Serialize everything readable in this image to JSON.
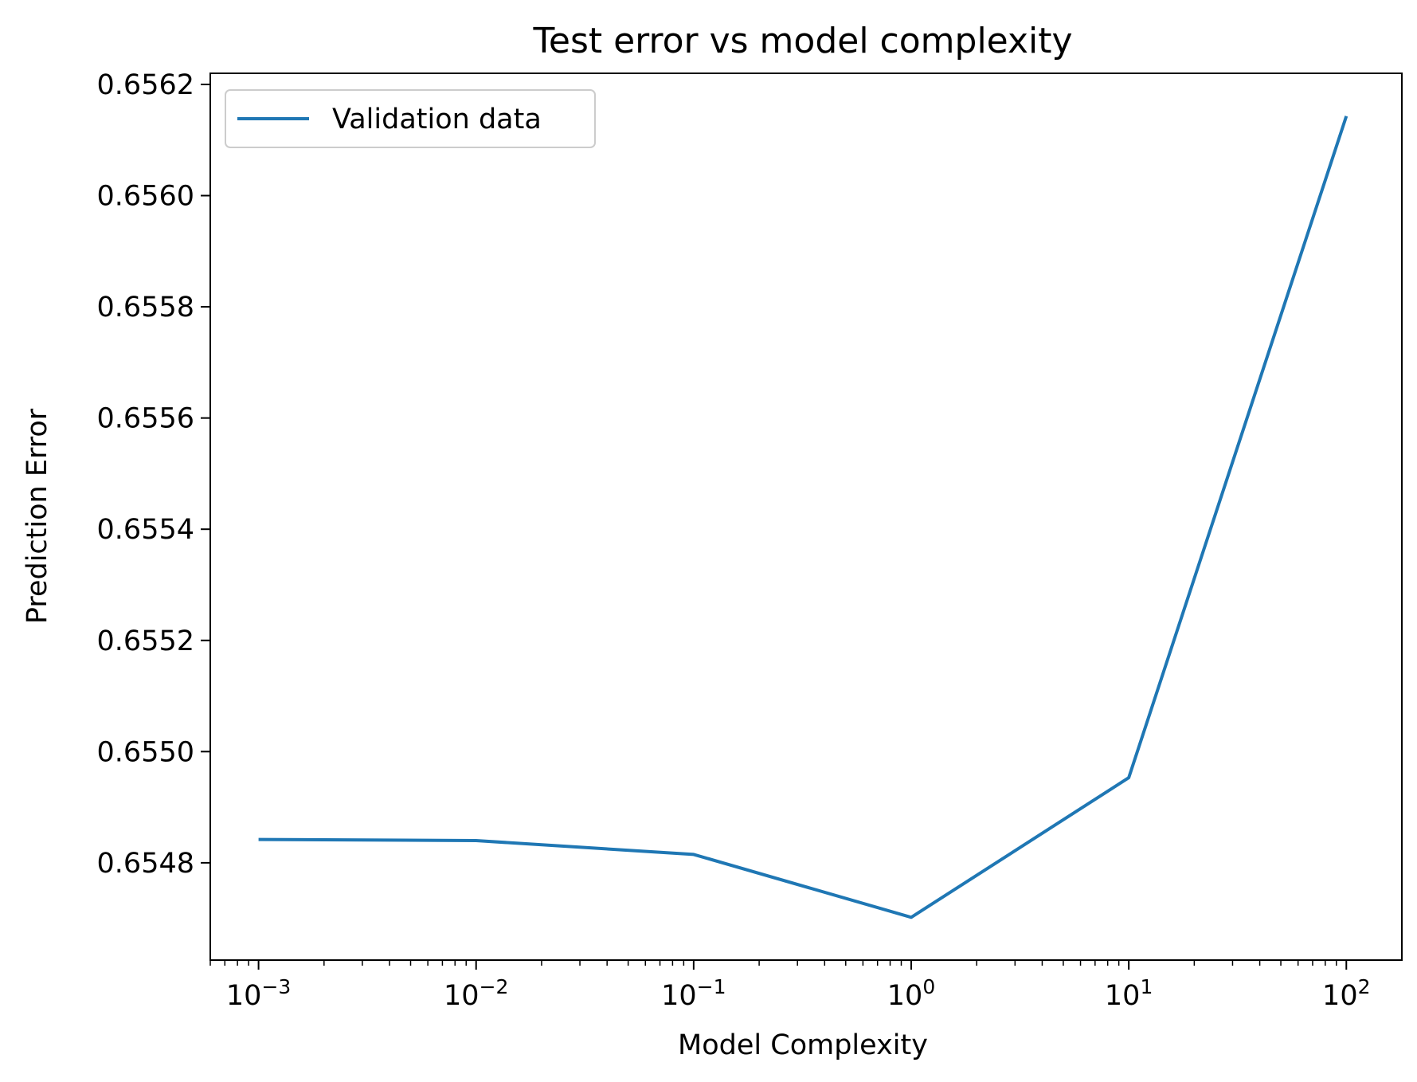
{
  "chart_data": {
    "type": "line",
    "title": "Test error vs model complexity",
    "xlabel": "Model Complexity",
    "ylabel": "Prediction Error",
    "xscale": "log",
    "xlim": [
      0.0006,
      180
    ],
    "ylim": [
      0.654625,
      0.65622
    ],
    "grid": false,
    "legend_position": "top-left",
    "x_ticks": [
      {
        "base": "10",
        "exp": "−3",
        "value": 0.001
      },
      {
        "base": "10",
        "exp": "−2",
        "value": 0.01
      },
      {
        "base": "10",
        "exp": "−1",
        "value": 0.1
      },
      {
        "base": "10",
        "exp": "0",
        "value": 1
      },
      {
        "base": "10",
        "exp": "1",
        "value": 10
      },
      {
        "base": "10",
        "exp": "2",
        "value": 100
      }
    ],
    "y_ticks": [
      "0.6548",
      "0.6550",
      "0.6552",
      "0.6554",
      "0.6556",
      "0.6558",
      "0.6560",
      "0.6562"
    ],
    "series": [
      {
        "name": "Validation data",
        "color": "#1f77b4",
        "x": [
          0.001,
          0.01,
          0.1,
          1,
          10,
          100
        ],
        "y": [
          0.654842,
          0.65484,
          0.654815,
          0.654702,
          0.654953,
          0.656143
        ]
      }
    ]
  }
}
